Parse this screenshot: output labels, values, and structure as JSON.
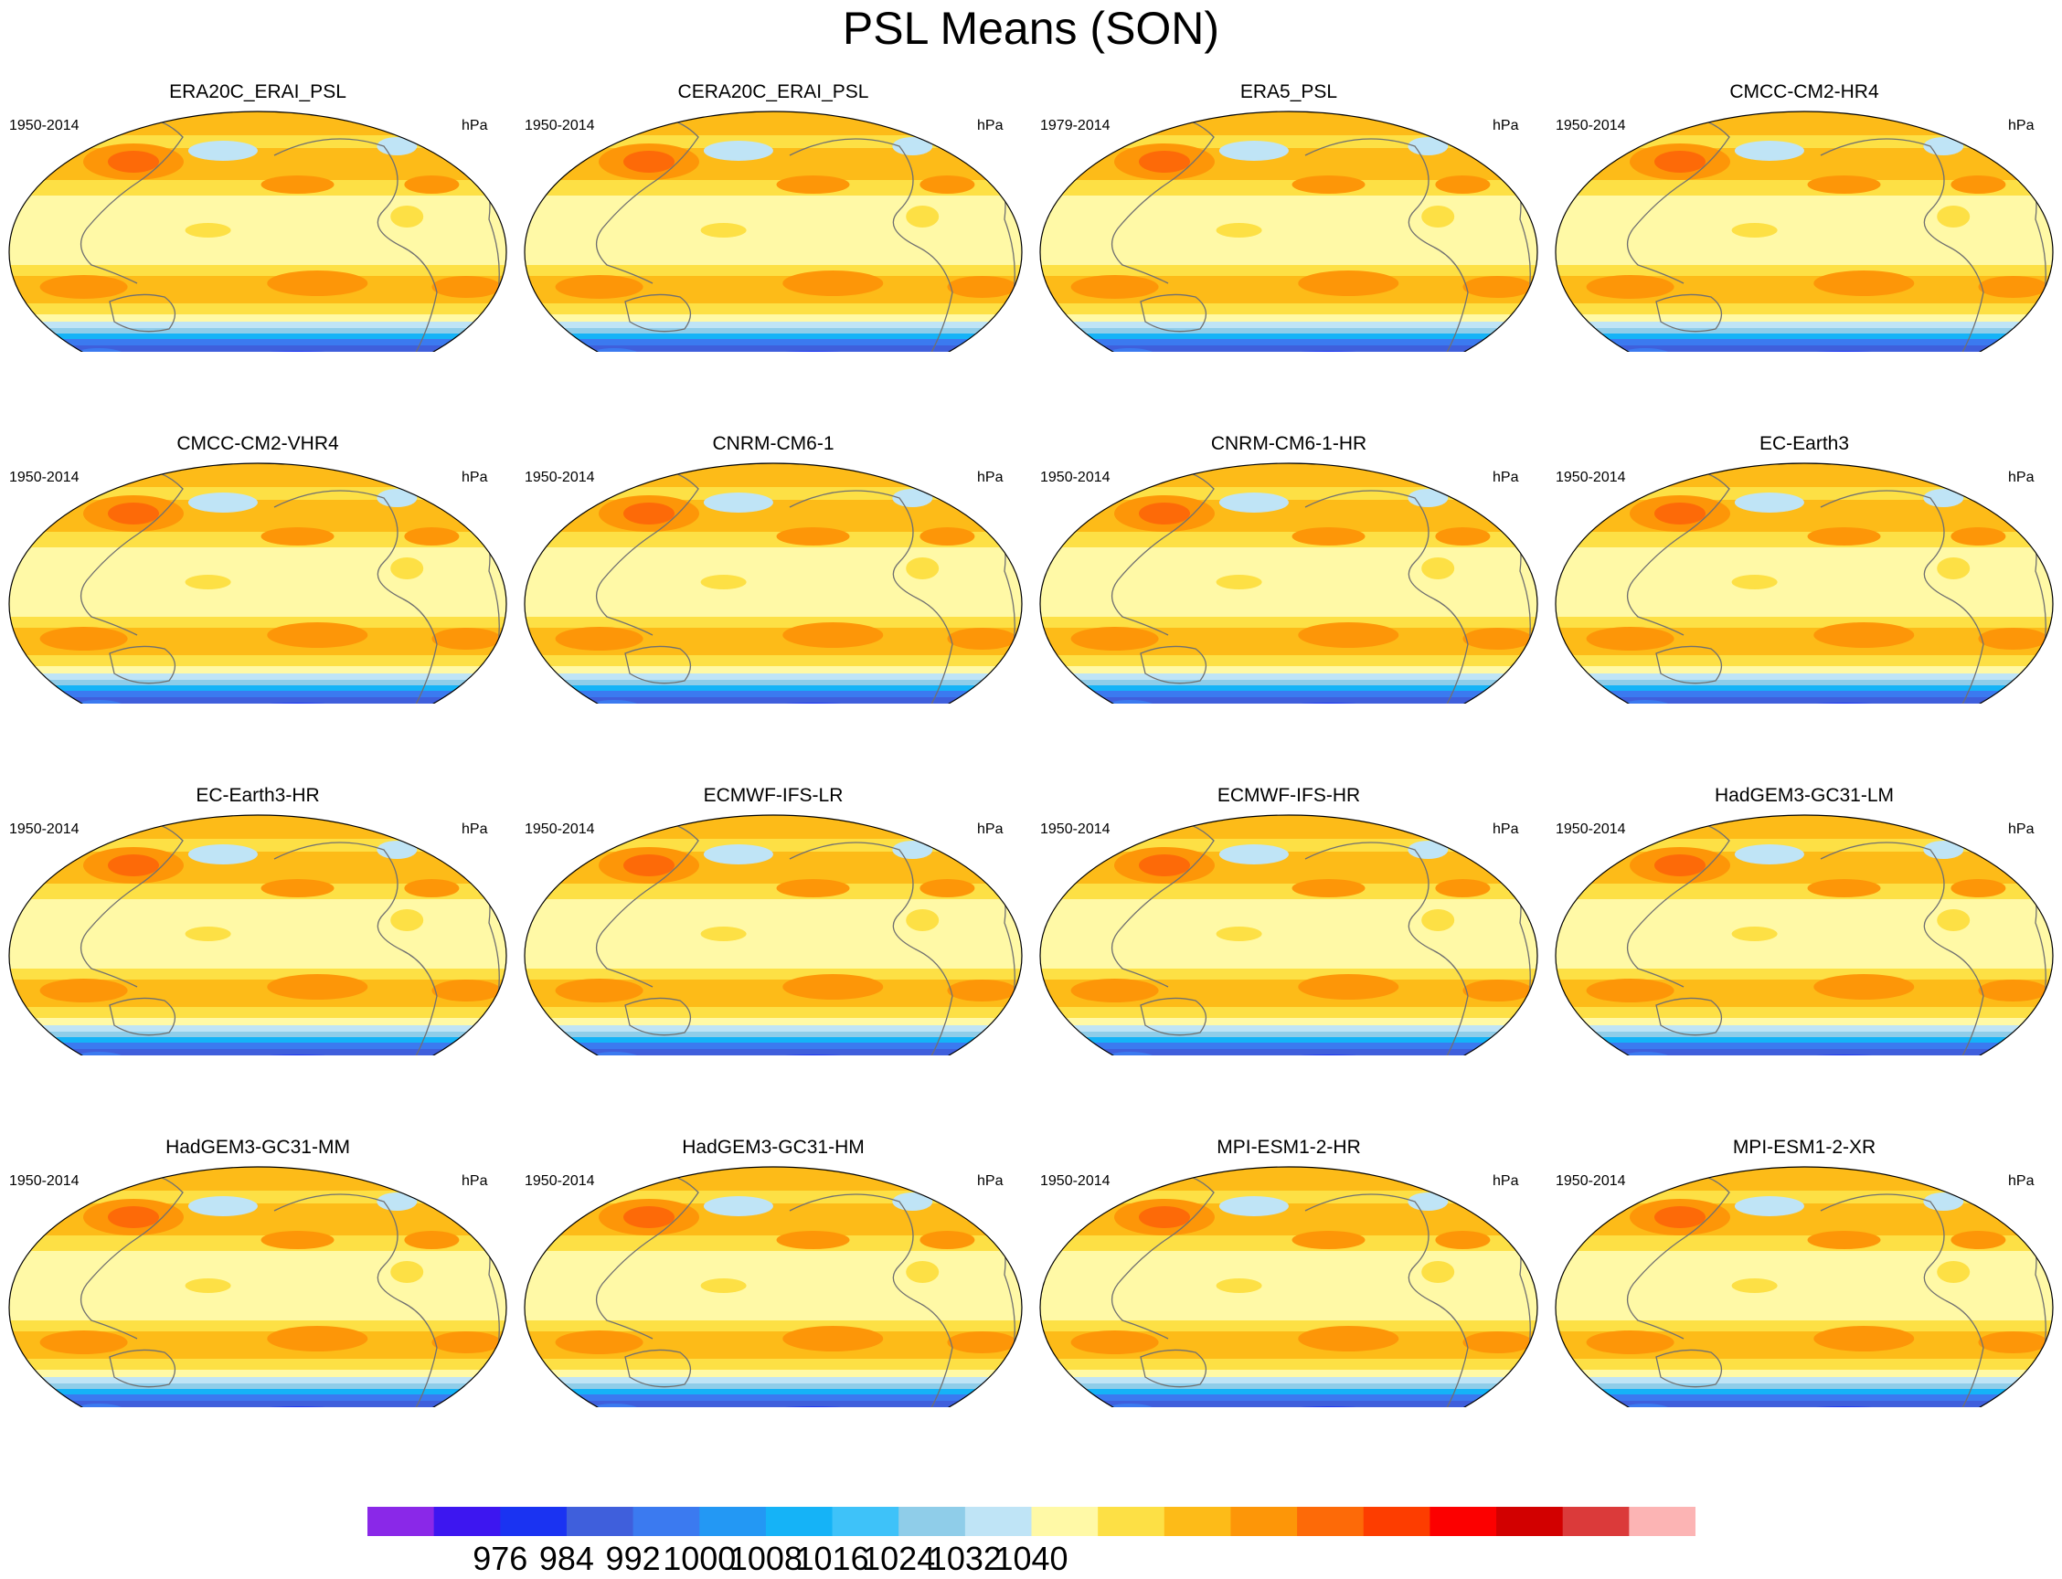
{
  "title": "PSL Means (SON)",
  "colors": {
    "bands": [
      "#8a28e8",
      "#3d16f0",
      "#1a33f2",
      "#3f5fdc",
      "#3b7af0",
      "#2398f4",
      "#15b3f7",
      "#3ec2f9",
      "#8fcde9",
      "#bfe4f6",
      "#fff9a6",
      "#fde045",
      "#fdbb18",
      "#fd9608",
      "#fd6a08",
      "#fd3d00",
      "#fc0000",
      "#d20000",
      "#db3a3a",
      "#fcb4b4"
    ],
    "coast": "#707070"
  },
  "colorbar": {
    "labels": [
      "976",
      "984",
      "992",
      "1000",
      "1008",
      "1016",
      "1024",
      "1032",
      "1040"
    ]
  },
  "panels": [
    {
      "title": "ERA20C_ERAI_PSL",
      "years": "1950-2014",
      "units": "hPa"
    },
    {
      "title": "CERA20C_ERAI_PSL",
      "years": "1950-2014",
      "units": "hPa"
    },
    {
      "title": "ERA5_PSL",
      "years": "1979-2014",
      "units": "hPa"
    },
    {
      "title": "CMCC-CM2-HR4",
      "years": "1950-2014",
      "units": "hPa"
    },
    {
      "title": "CMCC-CM2-VHR4",
      "years": "1950-2014",
      "units": "hPa"
    },
    {
      "title": "CNRM-CM6-1",
      "years": "1950-2014",
      "units": "hPa"
    },
    {
      "title": "CNRM-CM6-1-HR",
      "years": "1950-2014",
      "units": "hPa"
    },
    {
      "title": "EC-Earth3",
      "years": "1950-2014",
      "units": "hPa"
    },
    {
      "title": "EC-Earth3-HR",
      "years": "1950-2014",
      "units": "hPa"
    },
    {
      "title": "ECMWF-IFS-LR",
      "years": "1950-2014",
      "units": "hPa"
    },
    {
      "title": "ECMWF-IFS-HR",
      "years": "1950-2014",
      "units": "hPa"
    },
    {
      "title": "HadGEM3-GC31-LM",
      "years": "1950-2014",
      "units": "hPa"
    },
    {
      "title": "HadGEM3-GC31-MM",
      "years": "1950-2014",
      "units": "hPa"
    },
    {
      "title": "HadGEM3-GC31-HM",
      "years": "1950-2014",
      "units": "hPa"
    },
    {
      "title": "MPI-ESM1-2-HR",
      "years": "1950-2014",
      "units": "hPa"
    },
    {
      "title": "MPI-ESM1-2-XR",
      "years": "1950-2014",
      "units": "hPa"
    }
  ]
}
